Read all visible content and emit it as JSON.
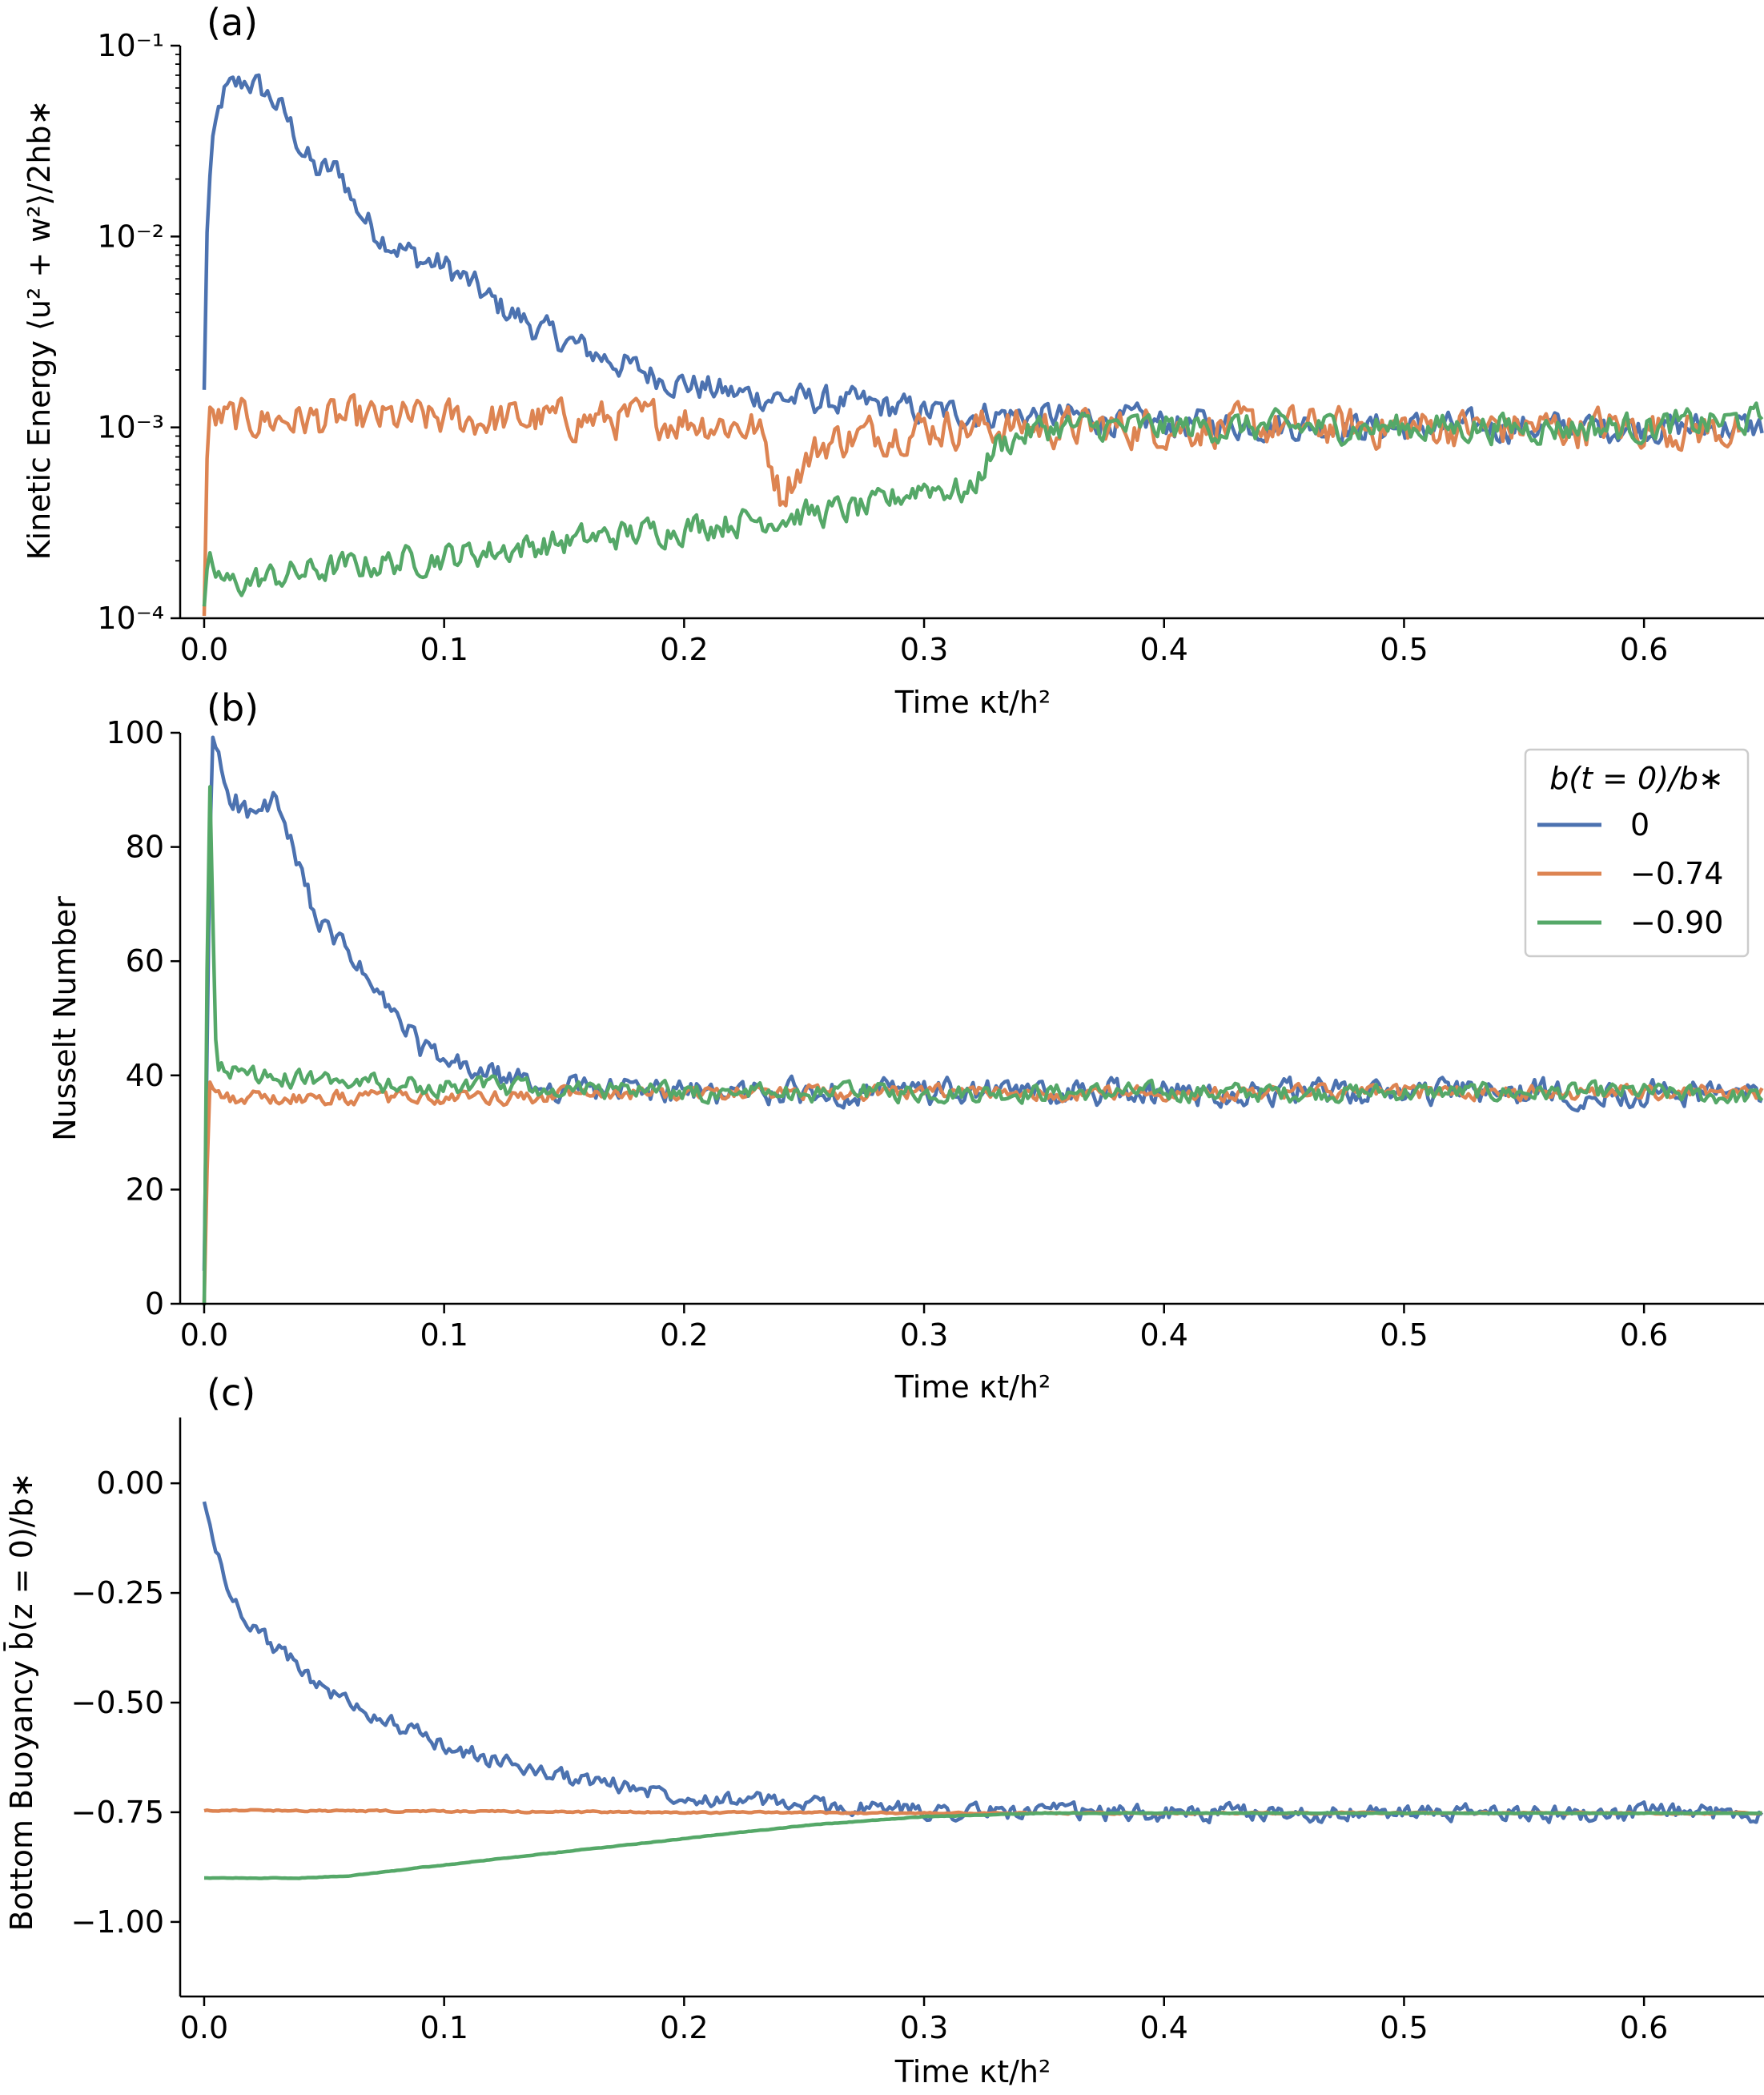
{
  "colors": {
    "s0": "#4c72b0",
    "s1": "#dd8452",
    "s2": "#55a868"
  },
  "legend": {
    "title": "b(t = 0)/b∗",
    "entries": [
      "0",
      "−0.74",
      "−0.90"
    ]
  },
  "chart_data": [
    {
      "panel": "(a)",
      "type": "line",
      "ylabel": "Kinetic Energy ⟨u² + w²⟩/2hb∗",
      "xlabel": "Time κt/h²",
      "xlim": [
        -0.01,
        0.65
      ],
      "ylim": [
        0.0001,
        0.1
      ],
      "yscale": "log",
      "x_ticks": [
        0.0,
        0.1,
        0.2,
        0.3,
        0.4,
        0.5,
        0.6
      ],
      "x_tick_labels": [
        "0.0",
        "0.1",
        "0.2",
        "0.3",
        "0.4",
        "0.5",
        "0.6"
      ],
      "y_ticks": [
        0.0001,
        0.001,
        0.01,
        0.1
      ],
      "y_tick_labels": [
        "10⁻⁴",
        "10⁻³",
        "10⁻²",
        "10⁻¹"
      ],
      "noise": [
        0.12,
        0.16,
        0.12
      ],
      "series": [
        {
          "name": "0",
          "x": [
            0,
            0.003,
            0.008,
            0.018,
            0.03,
            0.04,
            0.046,
            0.057,
            0.062,
            0.07,
            0.08,
            0.09,
            0.1,
            0.12,
            0.14,
            0.16,
            0.18,
            0.2,
            0.22,
            0.25,
            0.28,
            0.3,
            0.35,
            0.4,
            0.5,
            0.6,
            0.65
          ],
          "y": [
            0.0015,
            0.025,
            0.055,
            0.066,
            0.05,
            0.03,
            0.022,
            0.022,
            0.015,
            0.011,
            0.009,
            0.0075,
            0.007,
            0.0045,
            0.0032,
            0.0025,
            0.002,
            0.0017,
            0.0015,
            0.0014,
            0.0013,
            0.0012,
            0.00115,
            0.00105,
            0.001,
            0.001,
            0.001
          ]
        },
        {
          "name": "−0.74",
          "x": [
            0,
            0.002,
            0.1,
            0.2,
            0.23,
            0.24,
            0.26,
            0.3,
            0.4,
            0.5,
            0.6,
            0.64
          ],
          "y": [
            0.0001,
            0.0011,
            0.0011,
            0.0011,
            0.001,
            0.00045,
            0.00085,
            0.001,
            0.001,
            0.001,
            0.001,
            0.00095
          ]
        },
        {
          "name": "−0.90",
          "x": [
            0,
            0.002,
            0.01,
            0.05,
            0.1,
            0.15,
            0.2,
            0.25,
            0.28,
            0.3,
            0.32,
            0.33,
            0.35,
            0.4,
            0.5,
            0.6,
            0.65
          ],
          "y": [
            0.0001,
            0.00018,
            0.00015,
            0.00018,
            0.00021,
            0.00025,
            0.0003,
            0.00035,
            0.00038,
            0.0005,
            0.00045,
            0.0008,
            0.001,
            0.001,
            0.001,
            0.001,
            0.0011
          ]
        }
      ]
    },
    {
      "panel": "(b)",
      "type": "line",
      "ylabel": "Nusselt Number",
      "xlabel": "Time κt/h²",
      "xlim": [
        -0.01,
        0.65
      ],
      "ylim": [
        0,
        100
      ],
      "yscale": "linear",
      "x_ticks": [
        0.0,
        0.1,
        0.2,
        0.3,
        0.4,
        0.5,
        0.6
      ],
      "x_tick_labels": [
        "0.0",
        "0.1",
        "0.2",
        "0.3",
        "0.4",
        "0.5",
        "0.6"
      ],
      "y_ticks": [
        0,
        20,
        40,
        60,
        80,
        100
      ],
      "y_tick_labels": [
        "0",
        "20",
        "40",
        "60",
        "80",
        "100"
      ],
      "noise": [
        3.5,
        2.0,
        2.5
      ],
      "series": [
        {
          "name": "0",
          "x": [
            0,
            0.003,
            0.01,
            0.02,
            0.03,
            0.04,
            0.05,
            0.06,
            0.07,
            0.08,
            0.09,
            0.1,
            0.12,
            0.14,
            0.2,
            0.3,
            0.4,
            0.5,
            0.6,
            0.65
          ],
          "y": [
            5,
            100,
            90,
            85,
            88,
            75,
            65,
            62,
            55,
            50,
            45,
            42,
            40,
            38,
            37,
            37,
            37,
            37,
            37,
            37
          ]
        },
        {
          "name": "−0.74",
          "x": [
            0,
            0.002,
            0.01,
            0.1,
            0.2,
            0.3,
            0.4,
            0.5,
            0.6,
            0.65
          ],
          "y": [
            0,
            40,
            36,
            36,
            37,
            37,
            37,
            37,
            37,
            37
          ]
        },
        {
          "name": "−0.90",
          "x": [
            0,
            0.002,
            0.005,
            0.02,
            0.05,
            0.1,
            0.2,
            0.3,
            0.4,
            0.5,
            0.6,
            0.65
          ],
          "y": [
            0,
            100,
            42,
            40,
            39,
            38,
            37,
            37,
            37,
            37,
            37,
            36
          ]
        }
      ]
    },
    {
      "panel": "(c)",
      "type": "line",
      "ylabel": "Bottom Buoyancy b̄(z = 0)/b∗",
      "xlabel": "Time κt/h²",
      "xlim": [
        -0.01,
        0.65
      ],
      "ylim": [
        -1.17,
        0.15
      ],
      "yscale": "linear",
      "x_ticks": [
        0.0,
        0.1,
        0.2,
        0.3,
        0.4,
        0.5,
        0.6
      ],
      "x_tick_labels": [
        "0.0",
        "0.1",
        "0.2",
        "0.3",
        "0.4",
        "0.5",
        "0.6"
      ],
      "y_ticks": [
        0.0,
        -0.25,
        -0.5,
        -0.75,
        -1.0
      ],
      "y_tick_labels": [
        "0.00",
        "−0.25",
        "−0.50",
        "−0.75",
        "−1.00"
      ],
      "noise": [
        0.03,
        0.003,
        0.001
      ],
      "series": [
        {
          "name": "0",
          "x": [
            0,
            0.005,
            0.01,
            0.02,
            0.03,
            0.04,
            0.05,
            0.06,
            0.08,
            0.1,
            0.12,
            0.15,
            0.2,
            0.25,
            0.3,
            0.35,
            0.4,
            0.5,
            0.6,
            0.65
          ],
          "y": [
            -0.05,
            -0.15,
            -0.25,
            -0.32,
            -0.38,
            -0.42,
            -0.47,
            -0.5,
            -0.55,
            -0.6,
            -0.63,
            -0.67,
            -0.71,
            -0.735,
            -0.745,
            -0.75,
            -0.752,
            -0.752,
            -0.752,
            -0.752
          ]
        },
        {
          "name": "−0.74",
          "x": [
            0,
            0.1,
            0.2,
            0.3,
            0.4,
            0.5,
            0.6,
            0.65
          ],
          "y": [
            -0.745,
            -0.748,
            -0.75,
            -0.752,
            -0.752,
            -0.752,
            -0.752,
            -0.752
          ]
        },
        {
          "name": "−0.90",
          "x": [
            0,
            0.02,
            0.04,
            0.06,
            0.1,
            0.15,
            0.2,
            0.25,
            0.3,
            0.33,
            0.35,
            0.4,
            0.5,
            0.6,
            0.65
          ],
          "y": [
            -0.9,
            -0.9,
            -0.9,
            -0.895,
            -0.87,
            -0.84,
            -0.81,
            -0.78,
            -0.76,
            -0.755,
            -0.752,
            -0.752,
            -0.752,
            -0.752,
            -0.752
          ]
        }
      ]
    }
  ]
}
